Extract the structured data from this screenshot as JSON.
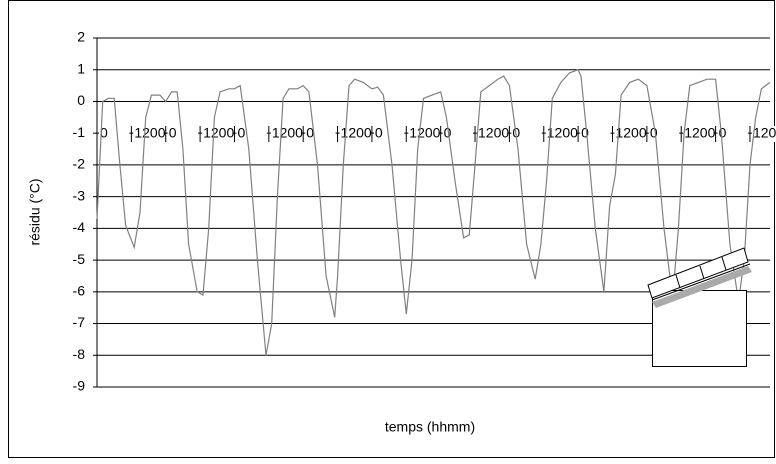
{
  "chart_data": {
    "type": "line",
    "x_label": "temps (hhmm)",
    "y_label": "résidu (°C)",
    "xlim": [
      0,
      235
    ],
    "ylim": [
      -9,
      2
    ],
    "yticks": [
      2,
      1,
      0,
      -1,
      -2,
      -3,
      -4,
      -5,
      -6,
      -7,
      -8,
      -9
    ],
    "xticks": [
      0,
      {
        "value": 12,
        "label": "1200"
      },
      {
        "value": 24,
        "label": "0"
      },
      {
        "value": 36,
        "label": "1200"
      },
      {
        "value": 48,
        "label": "0"
      },
      {
        "value": 60,
        "label": "1200"
      },
      {
        "value": 72,
        "label": "0"
      },
      {
        "value": 84,
        "label": "1200"
      },
      {
        "value": 96,
        "label": "0"
      },
      {
        "value": 108,
        "label": "1200"
      },
      {
        "value": 120,
        "label": "0"
      },
      {
        "value": 132,
        "label": "1200"
      },
      {
        "value": 144,
        "label": "0"
      },
      {
        "value": 156,
        "label": "1200"
      },
      {
        "value": 168,
        "label": "0"
      },
      {
        "value": 180,
        "label": "1200"
      },
      {
        "value": 192,
        "label": "0"
      },
      {
        "value": 204,
        "label": "1200"
      },
      {
        "value": 216,
        "label": "0"
      },
      {
        "value": 228,
        "label": "1200"
      }
    ],
    "grid": true,
    "color": "#808080",
    "x": [
      0,
      2,
      4,
      6,
      8,
      10,
      13,
      15,
      17,
      19,
      22,
      24,
      26,
      28,
      30,
      32,
      35,
      37,
      39,
      41,
      43,
      46,
      48,
      50,
      53,
      56,
      59,
      61,
      63,
      65,
      67,
      70,
      72,
      74,
      77,
      80,
      83,
      84,
      86,
      88,
      90,
      93,
      96,
      98,
      100,
      103,
      106,
      108,
      110,
      112,
      114,
      117,
      120,
      122,
      125,
      128,
      130,
      132,
      134,
      137,
      140,
      142,
      144,
      147,
      150,
      153,
      155,
      157,
      159,
      162,
      165,
      168,
      169,
      171,
      174,
      177,
      179,
      181,
      183,
      186,
      189,
      192,
      195,
      198,
      201,
      203,
      205,
      207,
      210,
      213,
      216,
      218,
      221,
      224,
      226,
      228,
      230,
      232,
      235
    ],
    "values": [
      -3.7,
      0.0,
      0.1,
      0.1,
      -2,
      -3.9,
      -4.6,
      -3.5,
      -0.5,
      0.2,
      0.2,
      0.0,
      0.3,
      0.3,
      -1.5,
      -4.5,
      -6.0,
      -6.1,
      -4,
      -0.5,
      0.3,
      0.4,
      0.4,
      0.5,
      -1.5,
      -5,
      -8.0,
      -7,
      -3,
      0.1,
      0.4,
      0.4,
      0.5,
      0.3,
      -2,
      -5.5,
      -6.8,
      -5.5,
      -2,
      0.5,
      0.7,
      0.6,
      0.4,
      0.45,
      0.2,
      -2,
      -5,
      -6.7,
      -5,
      -1.5,
      0.1,
      0.2,
      0.3,
      -0.5,
      -2.5,
      -4.3,
      -4.2,
      -2.0,
      0.3,
      0.5,
      0.7,
      0.8,
      0.5,
      -1.5,
      -4.5,
      -5.6,
      -4.5,
      -2.5,
      0.1,
      0.6,
      0.9,
      1.0,
      0.8,
      -1,
      -4,
      -6.0,
      -3.3,
      -2.3,
      0.2,
      0.6,
      0.7,
      0.5,
      -1,
      -4,
      -6.2,
      -4,
      -1,
      0.5,
      0.6,
      0.7,
      0.7,
      -1,
      -4.5,
      -6.3,
      -5,
      -2,
      -0.5,
      0.4,
      0.6
    ]
  }
}
